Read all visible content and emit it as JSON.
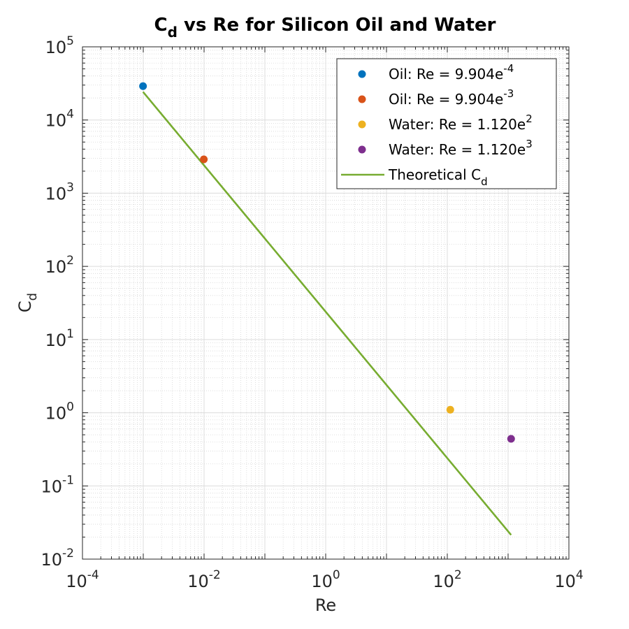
{
  "chart_data": {
    "type": "scatter",
    "title": {
      "main": "C",
      "sub": "d",
      "rest": " vs Re for Silicon Oil and Water"
    },
    "xlabel": "Re",
    "ylabel": {
      "main": "C",
      "sub": "d"
    },
    "x_scale": "log",
    "y_scale": "log",
    "xlim": [
      0.0001,
      10000
    ],
    "ylim": [
      0.01,
      100000
    ],
    "x_ticks": [
      {
        "value": 0.0001,
        "base": "10",
        "exp": "-4"
      },
      {
        "value": 0.01,
        "base": "10",
        "exp": "-2"
      },
      {
        "value": 1,
        "base": "10",
        "exp": "0"
      },
      {
        "value": 100,
        "base": "10",
        "exp": "2"
      },
      {
        "value": 10000,
        "base": "10",
        "exp": "4"
      }
    ],
    "y_ticks": [
      {
        "value": 0.01,
        "base": "10",
        "exp": "-2"
      },
      {
        "value": 0.1,
        "base": "10",
        "exp": "-1"
      },
      {
        "value": 1,
        "base": "10",
        "exp": "0"
      },
      {
        "value": 10,
        "base": "10",
        "exp": "1"
      },
      {
        "value": 100,
        "base": "10",
        "exp": "2"
      },
      {
        "value": 1000,
        "base": "10",
        "exp": "3"
      },
      {
        "value": 10000,
        "base": "10",
        "exp": "4"
      },
      {
        "value": 100000,
        "base": "10",
        "exp": "5"
      }
    ],
    "grid": true,
    "minor_grid": true,
    "legend_position": "top-right",
    "series": [
      {
        "label": "Oil: Re = 9.904e",
        "label_exp": "-4",
        "kind": "point",
        "color": "#0072BD",
        "x": 0.0009904,
        "y": 29000
      },
      {
        "label": "Oil: Re = 9.904e",
        "label_exp": "-3",
        "kind": "point",
        "color": "#D95319",
        "x": 0.009904,
        "y": 2900
      },
      {
        "label": "Water: Re = 1.120e",
        "label_exp": "2",
        "kind": "point",
        "color": "#EDB120",
        "x": 112,
        "y": 1.1
      },
      {
        "label": "Water: Re = 1.120e",
        "label_exp": "3",
        "kind": "point",
        "color": "#7E2F8E",
        "x": 1120,
        "y": 0.44
      },
      {
        "label": "Theoretical C",
        "label_sub": "d",
        "kind": "line",
        "color": "#77AC30",
        "x": [
          0.0009904,
          1120
        ],
        "y": [
          24232,
          0.0214
        ]
      }
    ]
  }
}
